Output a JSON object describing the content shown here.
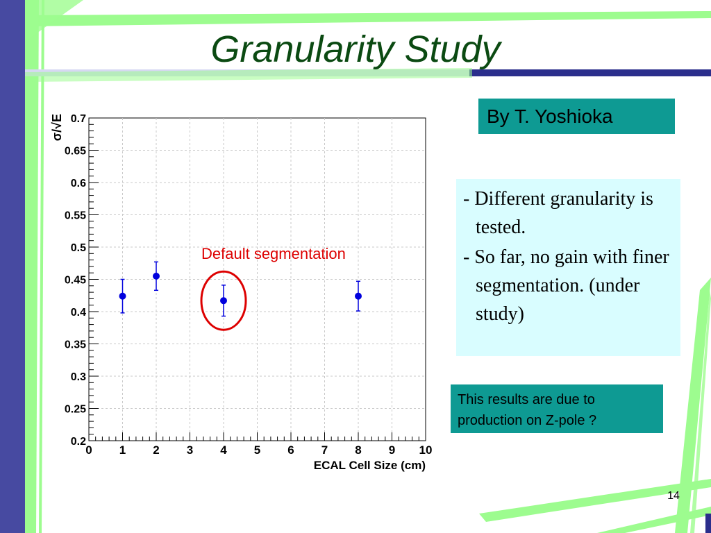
{
  "slide": {
    "title": "Granularity Study",
    "byline": "By T. Yoshioka",
    "notes": [
      "- Different granularity is tested.",
      "- So far, no gain with finer segmentation. (under study)"
    ],
    "result_box": "This results are due to production on Z-pole ?",
    "page_number": "14",
    "colors": {
      "title": "#0b4a12",
      "teal_box": "#0e9a93",
      "notes_box": "#d9fdff",
      "points": "#0000dd",
      "annotation": "#dd0000",
      "green_accent": "#9dfc8f",
      "navy_accent": "#2b2e8c"
    }
  },
  "chart_data": {
    "type": "scatter",
    "xlabel": "ECAL Cell Size (cm)",
    "ylabel": "σ/√E",
    "xlim": [
      0,
      10
    ],
    "ylim": [
      0.2,
      0.7
    ],
    "xticks": [
      "0",
      "1",
      "2",
      "3",
      "4",
      "5",
      "6",
      "7",
      "8",
      "9",
      "10"
    ],
    "yticks": [
      "0.2",
      "0.25",
      "0.3",
      "0.35",
      "0.4",
      "0.45",
      "0.5",
      "0.55",
      "0.6",
      "0.65",
      "0.7"
    ],
    "grid": true,
    "series": [
      {
        "points": [
          {
            "x": 1,
            "y": 0.424,
            "err": 0.026
          },
          {
            "x": 2,
            "y": 0.455,
            "err": 0.022
          },
          {
            "x": 4,
            "y": 0.417,
            "err": 0.024
          },
          {
            "x": 8,
            "y": 0.424,
            "err": 0.023
          }
        ]
      }
    ],
    "annotation": {
      "text": "Default segmentation",
      "x": 4,
      "y": 0.417
    }
  }
}
